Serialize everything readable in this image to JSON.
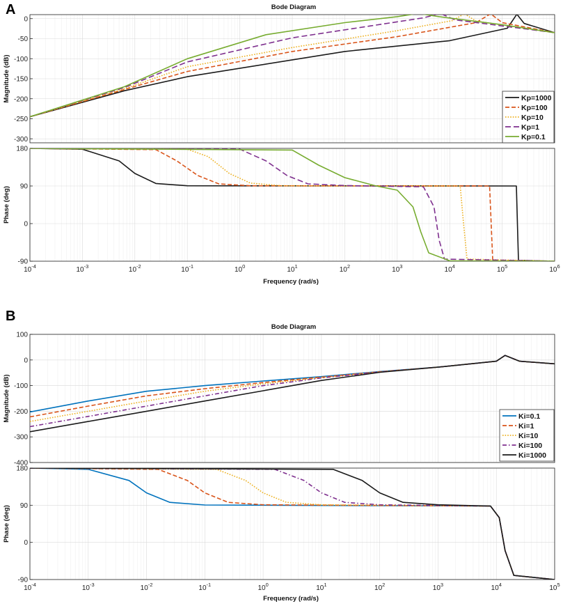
{
  "chart_data": [
    {
      "type": "line",
      "panel_label": "A",
      "title": "Bode Diagram",
      "xlabel": "Frequency  (rad/s)",
      "xscale": "log",
      "xlim_exp": [
        -4,
        6
      ],
      "x_tick_exponents": [
        "-4",
        "-3",
        "-2",
        "-1",
        "0",
        "1",
        "2",
        "3",
        "4",
        "5",
        "6"
      ],
      "magnitude": {
        "ylabel": "Magnitude (dB)",
        "ylim": [
          -310,
          10
        ],
        "yticks": [
          "0",
          "-50",
          "-100",
          "-150",
          "-200",
          "-250",
          "-300"
        ],
        "ytick_values": [
          0,
          -50,
          -100,
          -150,
          -200,
          -250,
          -300
        ]
      },
      "phase": {
        "ylabel": "Phase (deg)",
        "ylim": [
          -90,
          180
        ],
        "yticks": [
          "180",
          "90",
          "0",
          "-90"
        ],
        "ytick_values": [
          180,
          90,
          0,
          -90
        ]
      },
      "legend_position": "lower-right of magnitude plot",
      "series": [
        {
          "name": "Kp=1000",
          "color": "#1a1a1a",
          "dash": "solid",
          "mag_points": [
            [
              -4,
              -245
            ],
            [
              -2.2,
              -180
            ],
            [
              -1,
              -145
            ],
            [
              2,
              -82
            ],
            [
              4,
              -55
            ],
            [
              5.1,
              -24
            ],
            [
              5.28,
              11
            ],
            [
              5.42,
              -12
            ],
            [
              6,
              -35
            ]
          ],
          "phase_points": [
            [
              -4,
              180
            ],
            [
              -3,
              178
            ],
            [
              -2.3,
              150
            ],
            [
              -2,
              120
            ],
            [
              -1.6,
              96
            ],
            [
              -1,
              90.5
            ],
            [
              5.27,
              90
            ],
            [
              5.29,
              0
            ],
            [
              5.31,
              -88
            ],
            [
              6,
              -90
            ]
          ]
        },
        {
          "name": "Kp=100",
          "color": "#d9541a",
          "dash": "dash",
          "mag_points": [
            [
              -4,
              -245
            ],
            [
              -2.2,
              -177
            ],
            [
              -1,
              -132
            ],
            [
              1,
              -82
            ],
            [
              3,
              -45
            ],
            [
              4.5,
              -10
            ],
            [
              4.78,
              12
            ],
            [
              5,
              -10
            ],
            [
              6,
              -35
            ]
          ],
          "phase_points": [
            [
              -4,
              180
            ],
            [
              -1.6,
              177
            ],
            [
              -1.2,
              150
            ],
            [
              -0.8,
              115
            ],
            [
              -0.4,
              95
            ],
            [
              0.2,
              90.5
            ],
            [
              4.76,
              90
            ],
            [
              4.79,
              0
            ],
            [
              4.82,
              -88
            ],
            [
              6,
              -90
            ]
          ]
        },
        {
          "name": "Kp=10",
          "color": "#edb120",
          "dash": "dot",
          "mag_points": [
            [
              -4,
              -245
            ],
            [
              -2.2,
              -175
            ],
            [
              -1,
              -120
            ],
            [
              1,
              -72
            ],
            [
              3,
              -30
            ],
            [
              4.05,
              -5
            ],
            [
              4.28,
              12
            ],
            [
              4.5,
              -6
            ],
            [
              6,
              -35
            ]
          ],
          "phase_points": [
            [
              -4,
              180
            ],
            [
              -1,
              178
            ],
            [
              -0.6,
              160
            ],
            [
              -0.2,
              120
            ],
            [
              0.2,
              97
            ],
            [
              0.8,
              90.5
            ],
            [
              4.2,
              90
            ],
            [
              4.26,
              5
            ],
            [
              4.33,
              -85
            ],
            [
              6,
              -90
            ]
          ]
        },
        {
          "name": "Kp=1",
          "color": "#7e2f8e",
          "dash": "dashlong",
          "mag_points": [
            [
              -4,
              -245
            ],
            [
              -2.2,
              -172
            ],
            [
              -1,
              -108
            ],
            [
              1,
              -48
            ],
            [
              2.5,
              -18
            ],
            [
              3.5,
              2
            ],
            [
              3.82,
              13
            ],
            [
              4.1,
              -3
            ],
            [
              6,
              -35
            ]
          ],
          "phase_points": [
            [
              -4,
              180
            ],
            [
              0,
              178
            ],
            [
              0.5,
              150
            ],
            [
              0.9,
              115
            ],
            [
              1.3,
              95
            ],
            [
              2,
              91
            ],
            [
              3.5,
              88
            ],
            [
              3.7,
              40
            ],
            [
              3.8,
              -40
            ],
            [
              3.9,
              -85
            ],
            [
              6,
              -90
            ]
          ]
        },
        {
          "name": "Kp=0.1",
          "color": "#77ac30",
          "dash": "solid",
          "mag_points": [
            [
              -4,
              -245
            ],
            [
              -2.2,
              -170
            ],
            [
              -1,
              -100
            ],
            [
              0.5,
              -40
            ],
            [
              2,
              -10
            ],
            [
              3,
              5
            ],
            [
              3.4,
              13
            ],
            [
              3.8,
              5
            ],
            [
              5,
              -15
            ],
            [
              6,
              -35
            ]
          ],
          "phase_points": [
            [
              -4,
              180
            ],
            [
              1,
              176
            ],
            [
              1.5,
              140
            ],
            [
              2,
              110
            ],
            [
              2.6,
              90
            ],
            [
              3,
              80
            ],
            [
              3.3,
              40
            ],
            [
              3.45,
              -20
            ],
            [
              3.6,
              -70
            ],
            [
              4,
              -89
            ],
            [
              6,
              -90
            ]
          ]
        }
      ]
    },
    {
      "type": "line",
      "panel_label": "B",
      "title": "Bode Diagram",
      "xlabel": "Frequency  (rad/s)",
      "xscale": "log",
      "xlim_exp": [
        -4,
        5
      ],
      "x_tick_exponents": [
        "-4",
        "-3",
        "-2",
        "-1",
        "0",
        "1",
        "2",
        "3",
        "4",
        "5"
      ],
      "magnitude": {
        "ylabel": "Magnitude (dB)",
        "ylim": [
          -400,
          100
        ],
        "yticks": [
          "100",
          "0",
          "-100",
          "-200",
          "-300",
          "-400"
        ],
        "ytick_values": [
          100,
          0,
          -100,
          -200,
          -300,
          -400
        ]
      },
      "phase": {
        "ylabel": "Phase (deg)",
        "ylim": [
          -90,
          180
        ],
        "yticks": [
          "180",
          "90",
          "0",
          "-90"
        ],
        "ytick_values": [
          180,
          90,
          0,
          -90
        ]
      },
      "legend_position": "lower-right of magnitude plot",
      "series": [
        {
          "name": "Ki=0.1",
          "color": "#0072bd",
          "dash": "solid",
          "mag_points": [
            [
              -4,
              -203
            ],
            [
              -3,
              -160
            ],
            [
              -2,
              -122
            ],
            [
              -1,
              -100
            ],
            [
              0,
              -82
            ],
            [
              1,
              -65
            ],
            [
              2,
              -45
            ],
            [
              3,
              -28
            ],
            [
              4,
              -5
            ],
            [
              4.15,
              18
            ],
            [
              4.4,
              -5
            ],
            [
              5,
              -15
            ]
          ],
          "phase_points": [
            [
              -4,
              180
            ],
            [
              -3,
              177
            ],
            [
              -2.3,
              150
            ],
            [
              -2,
              120
            ],
            [
              -1.6,
              97
            ],
            [
              -1,
              90.5
            ],
            [
              3.9,
              88
            ],
            [
              4.05,
              60
            ],
            [
              4.15,
              -20
            ],
            [
              4.3,
              -80
            ],
            [
              5,
              -90
            ]
          ]
        },
        {
          "name": "Ki=1",
          "color": "#d95319",
          "dash": "dash",
          "mag_points": [
            [
              -4,
              -222
            ],
            [
              -3,
              -180
            ],
            [
              -2,
              -140
            ],
            [
              -1,
              -112
            ],
            [
              0,
              -88
            ],
            [
              1,
              -67
            ],
            [
              2,
              -46
            ],
            [
              3,
              -28
            ],
            [
              4,
              -5
            ],
            [
              4.15,
              18
            ],
            [
              4.4,
              -5
            ],
            [
              5,
              -15
            ]
          ],
          "phase_points": [
            [
              -4,
              180
            ],
            [
              -1.8,
              177
            ],
            [
              -1.3,
              150
            ],
            [
              -1,
              120
            ],
            [
              -0.6,
              97
            ],
            [
              0,
              91
            ],
            [
              3.9,
              88
            ],
            [
              4.05,
              60
            ],
            [
              4.15,
              -20
            ],
            [
              4.3,
              -80
            ],
            [
              5,
              -90
            ]
          ]
        },
        {
          "name": "Ki=10",
          "color": "#edb120",
          "dash": "dot",
          "mag_points": [
            [
              -4,
              -240
            ],
            [
              -3,
              -200
            ],
            [
              -2,
              -160
            ],
            [
              -1,
              -122
            ],
            [
              0,
              -93
            ],
            [
              1,
              -69
            ],
            [
              2,
              -47
            ],
            [
              3,
              -28
            ],
            [
              4,
              -5
            ],
            [
              4.15,
              18
            ],
            [
              4.4,
              -5
            ],
            [
              5,
              -15
            ]
          ],
          "phase_points": [
            [
              -4,
              180
            ],
            [
              -0.8,
              177
            ],
            [
              -0.3,
              150
            ],
            [
              0,
              120
            ],
            [
              0.4,
              97
            ],
            [
              1,
              91
            ],
            [
              3.9,
              88
            ],
            [
              4.05,
              60
            ],
            [
              4.15,
              -20
            ],
            [
              4.3,
              -80
            ],
            [
              5,
              -90
            ]
          ]
        },
        {
          "name": "Ki=100",
          "color": "#7e2f8e",
          "dash": "dashdot",
          "mag_points": [
            [
              -4,
              -260
            ],
            [
              -3,
              -220
            ],
            [
              -2,
              -180
            ],
            [
              -1,
              -140
            ],
            [
              0,
              -100
            ],
            [
              1,
              -70
            ],
            [
              2,
              -47
            ],
            [
              3,
              -28
            ],
            [
              4,
              -5
            ],
            [
              4.15,
              18
            ],
            [
              4.4,
              -5
            ],
            [
              5,
              -15
            ]
          ],
          "phase_points": [
            [
              -4,
              180
            ],
            [
              0.2,
              177
            ],
            [
              0.7,
              150
            ],
            [
              1,
              120
            ],
            [
              1.4,
              97
            ],
            [
              2,
              91
            ],
            [
              3.9,
              88
            ],
            [
              4.05,
              60
            ],
            [
              4.15,
              -20
            ],
            [
              4.3,
              -80
            ],
            [
              5,
              -90
            ]
          ]
        },
        {
          "name": "Ki=1000",
          "color": "#1a1a1a",
          "dash": "solid",
          "mag_points": [
            [
              -4,
              -280
            ],
            [
              -3,
              -240
            ],
            [
              -2,
              -200
            ],
            [
              -1,
              -160
            ],
            [
              0,
              -120
            ],
            [
              1,
              -80
            ],
            [
              2,
              -48
            ],
            [
              3,
              -28
            ],
            [
              4,
              -5
            ],
            [
              4.15,
              18
            ],
            [
              4.4,
              -5
            ],
            [
              5,
              -15
            ]
          ],
          "phase_points": [
            [
              -4,
              180
            ],
            [
              1.2,
              177
            ],
            [
              1.7,
              150
            ],
            [
              2,
              120
            ],
            [
              2.4,
              97
            ],
            [
              3,
              91
            ],
            [
              3.9,
              88
            ],
            [
              4.05,
              60
            ],
            [
              4.15,
              -20
            ],
            [
              4.3,
              -80
            ],
            [
              5,
              -90
            ]
          ]
        }
      ]
    }
  ]
}
